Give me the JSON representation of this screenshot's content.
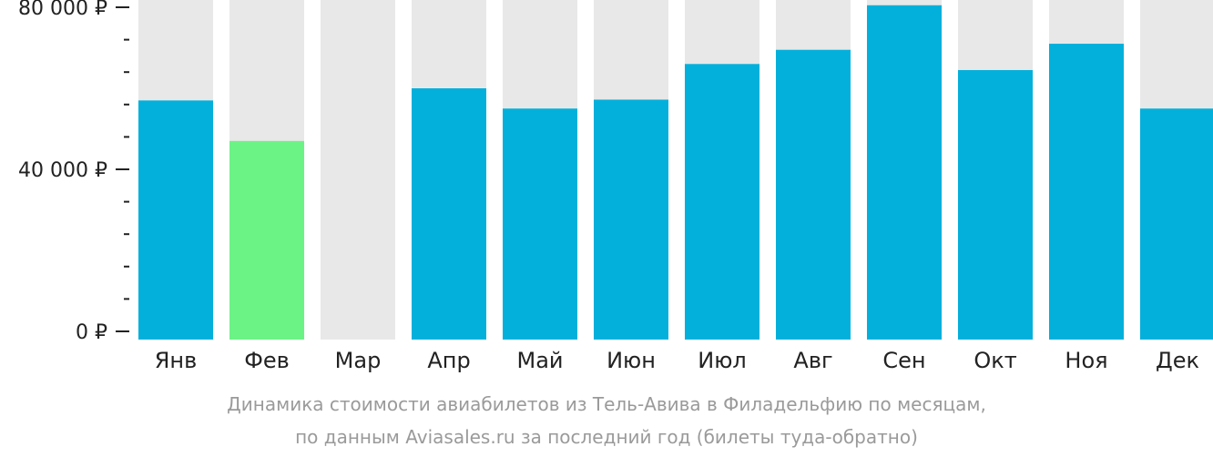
{
  "chart_data": {
    "type": "bar",
    "categories": [
      "Янв",
      "Фев",
      "Мар",
      "Апр",
      "Май",
      "Июн",
      "Июл",
      "Авг",
      "Сен",
      "Окт",
      "Ноя",
      "Дек"
    ],
    "values": [
      57000,
      47000,
      null,
      60000,
      55000,
      57200,
      66000,
      69500,
      80500,
      64500,
      71000,
      55000
    ],
    "highlight_index": 1,
    "y_ticks": [
      {
        "value": 80000,
        "label": "80 000 ₽"
      },
      {
        "value": 40000,
        "label": "40 000 ₽"
      },
      {
        "value": 0,
        "label": "0 ₽"
      }
    ],
    "y_minor_step": 8000,
    "ylim": [
      0,
      82000
    ],
    "grid": false,
    "colors": {
      "bar": "#03b0db",
      "highlight": "#6cf386",
      "track": "#e8e8e8",
      "axis": "#222222"
    }
  },
  "caption": {
    "line1": "Динамика стоимости авиабилетов из Тель-Авива в Филадельфию по месяцам,",
    "line2": "по данным Aviasales.ru за последний год (билеты туда-обратно)"
  }
}
